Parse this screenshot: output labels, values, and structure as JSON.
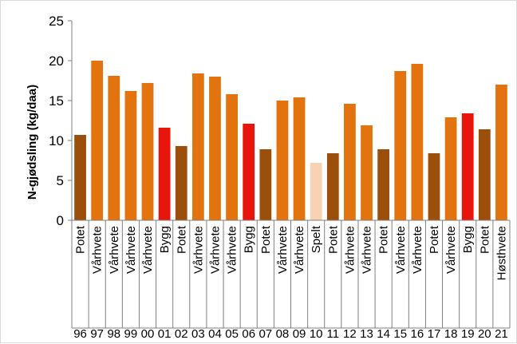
{
  "chart_data": {
    "type": "bar",
    "title": "",
    "xlabel": "",
    "ylabel": "N-gjødsling (kg/daa)",
    "ylim": [
      0,
      25
    ],
    "yticks": [
      0,
      5,
      10,
      15,
      20,
      25
    ],
    "grid": false,
    "legend": "none",
    "categories": [
      {
        "year": "96",
        "crop": "Potet"
      },
      {
        "year": "97",
        "crop": "Vårhvete"
      },
      {
        "year": "98",
        "crop": "Vårhvete"
      },
      {
        "year": "99",
        "crop": "Vårhvete"
      },
      {
        "year": "00",
        "crop": "Vårhvete"
      },
      {
        "year": "01",
        "crop": "Bygg"
      },
      {
        "year": "02",
        "crop": "Potet"
      },
      {
        "year": "03",
        "crop": "Vårhvete"
      },
      {
        "year": "04",
        "crop": "Vårhvete"
      },
      {
        "year": "05",
        "crop": "Vårhvete"
      },
      {
        "year": "06",
        "crop": "Bygg"
      },
      {
        "year": "07",
        "crop": "Potet"
      },
      {
        "year": "08",
        "crop": "Vårhvete"
      },
      {
        "year": "09",
        "crop": "Vårhvete"
      },
      {
        "year": "10",
        "crop": "Spelt"
      },
      {
        "year": "11",
        "crop": "Potet"
      },
      {
        "year": "12",
        "crop": "Vårhvete"
      },
      {
        "year": "13",
        "crop": "Vårhvete"
      },
      {
        "year": "14",
        "crop": "Potet"
      },
      {
        "year": "15",
        "crop": "Vårhvete"
      },
      {
        "year": "16",
        "crop": "Vårhvete"
      },
      {
        "year": "17",
        "crop": "Potet"
      },
      {
        "year": "18",
        "crop": "Vårhvete"
      },
      {
        "year": "19",
        "crop": "Bygg"
      },
      {
        "year": "20",
        "crop": "Potet"
      },
      {
        "year": "21",
        "crop": "Høsthvete"
      }
    ],
    "values": [
      10.7,
      20.0,
      18.1,
      16.2,
      17.2,
      11.6,
      9.3,
      18.4,
      18.0,
      15.8,
      12.1,
      8.9,
      15.0,
      15.4,
      7.2,
      8.4,
      14.6,
      11.9,
      8.9,
      18.7,
      19.6,
      8.4,
      12.9,
      13.4,
      11.4,
      17.0
    ],
    "crop_colors": {
      "Potet": "#9c4f0b",
      "Vårhvete": "#e2730f",
      "Bygg": "#e8150c",
      "Spelt": "#f9d2b1",
      "Høsthvete": "#e2730f"
    }
  }
}
